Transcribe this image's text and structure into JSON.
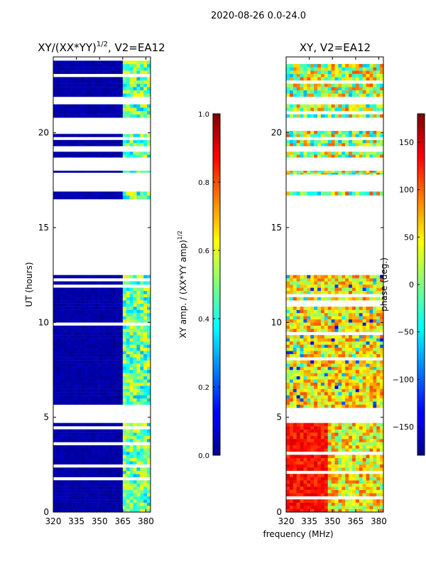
{
  "figure": {
    "suptitle": "2020-08-26 0.0-24.0",
    "shared_xlabel": "frequency (MHz)"
  },
  "colors": {
    "background": "#ffffff",
    "axis": "#000000",
    "low": "#00008f",
    "high": "#800000"
  },
  "chart_data": [
    {
      "type": "heatmap",
      "title_main": "XY/(XX*YY)",
      "title_sup": "1/2",
      "title_rest": ", V2=EA12",
      "xlabel": "",
      "ylabel": "UT (hours)",
      "x_range": [
        320,
        383
      ],
      "y_range": [
        0,
        24
      ],
      "x_ticks": [
        320,
        335,
        350,
        365,
        380
      ],
      "y_ticks": [
        0,
        5,
        10,
        15,
        20
      ],
      "colormap": "jet",
      "data_blocks_hours": [
        [
          0.0,
          4.7
        ],
        [
          5.5,
          12.5
        ],
        [
          16.5,
          16.9
        ],
        [
          17.8,
          18.0
        ],
        [
          18.7,
          19.0
        ],
        [
          19.3,
          20.1
        ],
        [
          20.8,
          21.5
        ],
        [
          21.9,
          23.8
        ]
      ],
      "colorbar": {
        "label_main": "XY amp. / (XX*YY amp)",
        "label_sup": "1/2",
        "range": [
          0.0,
          1.0
        ],
        "ticks": [
          "0.0",
          "0.2",
          "0.4",
          "0.6",
          "0.8",
          "1.0"
        ]
      }
    },
    {
      "type": "heatmap",
      "title_main": "XY, V2=EA12",
      "xlabel": "frequency (MHz)",
      "ylabel": "",
      "x_range": [
        320,
        383
      ],
      "y_range": [
        0,
        24
      ],
      "x_ticks": [
        320,
        335,
        350,
        365,
        380
      ],
      "y_ticks": [
        0,
        5,
        10,
        15,
        20
      ],
      "colormap": "jet",
      "data_blocks_hours": [
        [
          0.0,
          4.7
        ],
        [
          5.5,
          12.5
        ],
        [
          16.5,
          16.9
        ],
        [
          17.8,
          18.0
        ],
        [
          18.7,
          19.0
        ],
        [
          19.3,
          20.1
        ],
        [
          20.8,
          21.5
        ],
        [
          21.9,
          23.8
        ]
      ],
      "colorbar": {
        "label_main": "phase (deg.)",
        "range": [
          -180,
          180
        ],
        "ticks": [
          "150",
          "100",
          "50",
          "0",
          "−50",
          "−100",
          "−150"
        ],
        "tick_values": [
          150,
          100,
          50,
          0,
          -50,
          -100,
          -150
        ]
      }
    }
  ]
}
